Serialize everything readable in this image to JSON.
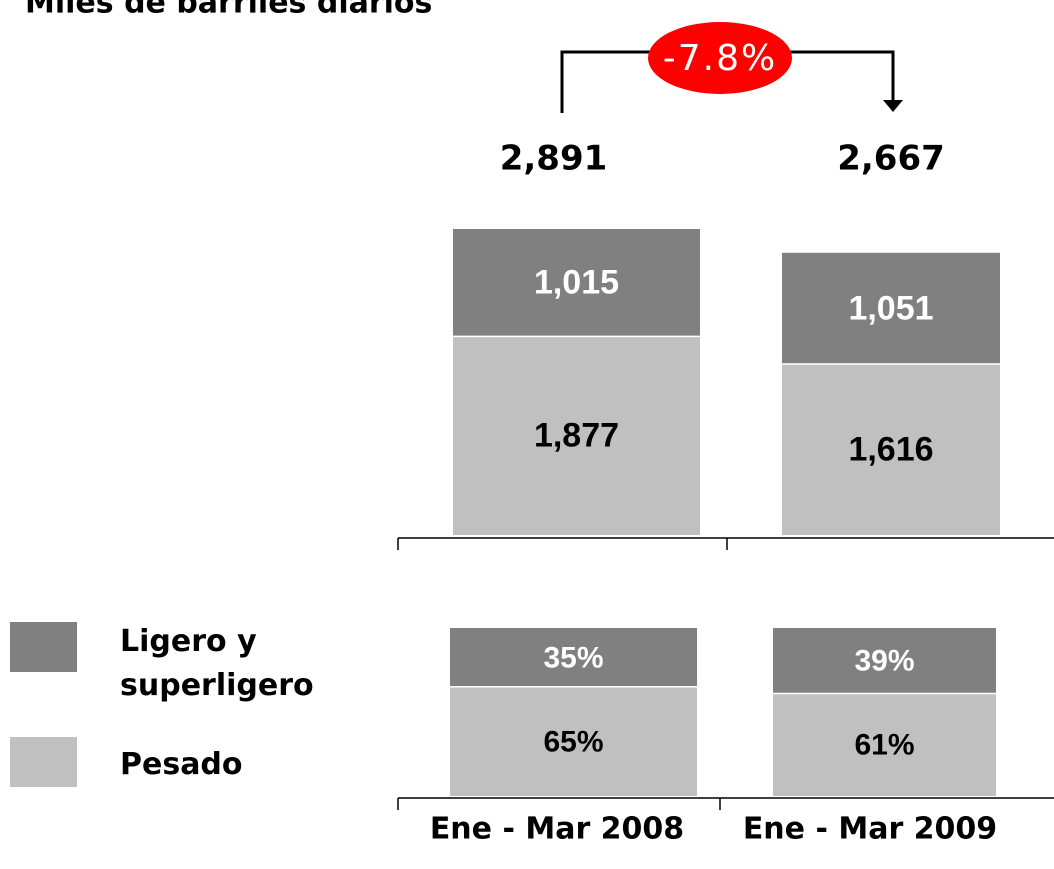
{
  "chart_data": [
    {
      "type": "stacked-bar",
      "title": "Miles de barriles diarios",
      "series": [
        {
          "name": "Pesado",
          "color": "#c0c0c0",
          "values": [
            1877,
            1616
          ],
          "value_labels": [
            "1,877",
            "1,616"
          ]
        },
        {
          "name": "Ligero y superligero",
          "color": "#808080",
          "values": [
            1015,
            1051
          ],
          "value_labels": [
            "1,015",
            "1,051"
          ]
        }
      ],
      "totals": [
        2891,
        2667
      ],
      "total_labels": [
        "2,891",
        "2,667"
      ],
      "annotation": "-7.8%"
    },
    {
      "type": "stacked-bar",
      "categories": [
        "Ene - Mar 2008",
        "Ene - Mar 2009"
      ],
      "series": [
        {
          "name": "Pesado",
          "color": "#c0c0c0",
          "values": [
            65,
            61
          ],
          "value_labels": [
            "65%",
            "61%"
          ]
        },
        {
          "name": "Ligero y superligero",
          "color": "#808080",
          "values": [
            35,
            39
          ],
          "value_labels": [
            "35%",
            "39%"
          ]
        }
      ]
    }
  ]
}
